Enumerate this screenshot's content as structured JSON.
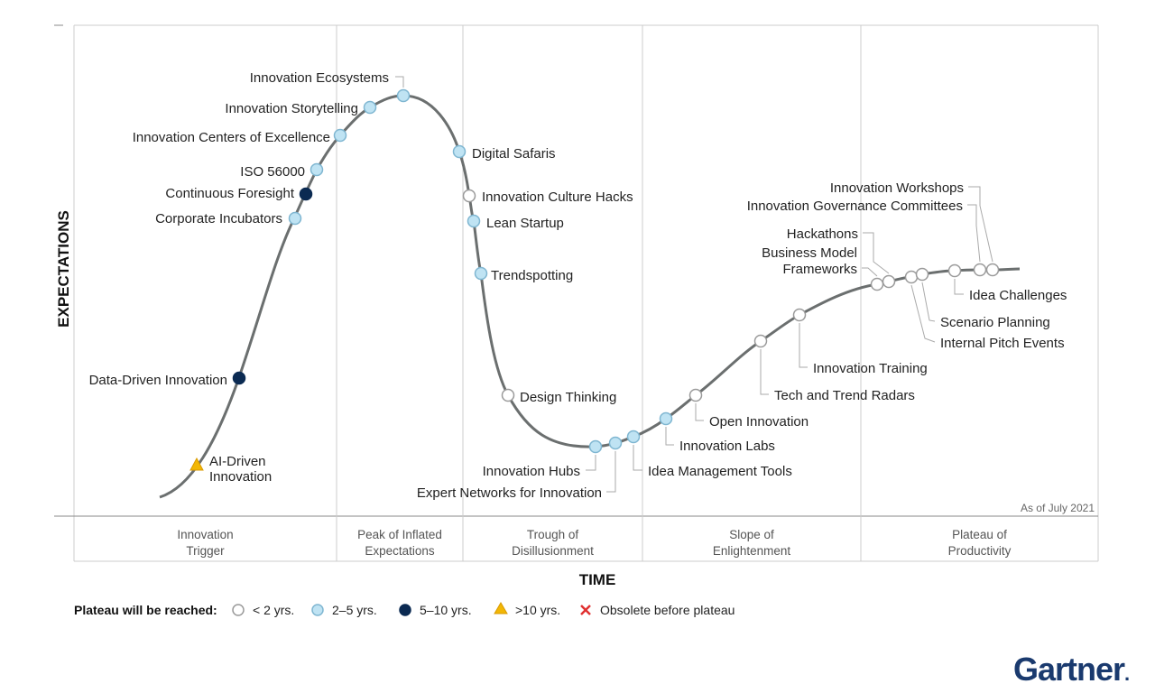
{
  "chart_data": {
    "type": "line",
    "title": "",
    "xlabel": "TIME",
    "ylabel": "EXPECTATIONS",
    "as_of": "As of July 2021",
    "phases": [
      [
        "Innovation",
        "Trigger"
      ],
      [
        "Peak of Inflated",
        "Expectations"
      ],
      [
        "Trough of",
        "Disillusionment"
      ],
      [
        "Slope of",
        "Enlightenment"
      ],
      [
        "Plateau of",
        "Productivity"
      ]
    ],
    "legend": {
      "title": "Plateau will be reached:",
      "items": [
        {
          "label": "< 2 yrs.",
          "fill": "#ffffff",
          "stroke": "#9a9a9a",
          "shape": "circle"
        },
        {
          "label": "2–5 yrs.",
          "fill": "#bfe3f3",
          "stroke": "#7fb6d1",
          "shape": "circle"
        },
        {
          "label": "5–10 yrs.",
          "fill": "#0b2a52",
          "stroke": "#0b2a52",
          "shape": "circle"
        },
        {
          "label": ">10 yrs.",
          "fill": "#f2b705",
          "stroke": "#d99a00",
          "shape": "triangle"
        },
        {
          "label": "Obsolete before plateau",
          "fill": "#ffffff",
          "stroke": "#e03030",
          "shape": "x"
        }
      ]
    },
    "technologies": [
      {
        "name": "AI-Driven",
        "name2": "Innovation",
        "cat": ">10",
        "phase": "Innovation Trigger"
      },
      {
        "name": "Data-Driven Innovation",
        "cat": "5-10",
        "phase": "Innovation Trigger"
      },
      {
        "name": "Corporate Incubators",
        "cat": "2-5",
        "phase": "Innovation Trigger"
      },
      {
        "name": "Continuous Foresight",
        "cat": "5-10",
        "phase": "Innovation Trigger"
      },
      {
        "name": "ISO 56000",
        "cat": "2-5",
        "phase": "Innovation Trigger"
      },
      {
        "name": "Innovation Centers of Excellence",
        "cat": "2-5",
        "phase": "Peak of Inflated Expectations"
      },
      {
        "name": "Innovation Storytelling",
        "cat": "2-5",
        "phase": "Peak of Inflated Expectations"
      },
      {
        "name": "Innovation Ecosystems",
        "cat": "2-5",
        "phase": "Peak of Inflated Expectations"
      },
      {
        "name": "Digital Safaris",
        "cat": "2-5",
        "phase": "Peak of Inflated Expectations"
      },
      {
        "name": "Innovation Culture Hacks",
        "cat": "<2",
        "phase": "Trough of Disillusionment"
      },
      {
        "name": "Lean Startup",
        "cat": "2-5",
        "phase": "Trough of Disillusionment"
      },
      {
        "name": "Trendspotting",
        "cat": "2-5",
        "phase": "Trough of Disillusionment"
      },
      {
        "name": "Design Thinking",
        "cat": "<2",
        "phase": "Trough of Disillusionment"
      },
      {
        "name": "Innovation Hubs",
        "cat": "2-5",
        "phase": "Trough of Disillusionment"
      },
      {
        "name": "Expert Networks for Innovation",
        "cat": "2-5",
        "phase": "Trough of Disillusionment"
      },
      {
        "name": "Idea Management Tools",
        "cat": "2-5",
        "phase": "Trough of Disillusionment"
      },
      {
        "name": "Innovation Labs",
        "cat": "2-5",
        "phase": "Slope of Enlightenment"
      },
      {
        "name": "Open Innovation",
        "cat": "<2",
        "phase": "Slope of Enlightenment"
      },
      {
        "name": "Tech and Trend Radars",
        "cat": "<2",
        "phase": "Slope of Enlightenment"
      },
      {
        "name": "Innovation Training",
        "cat": "<2",
        "phase": "Slope of Enlightenment"
      },
      {
        "name": "Business Model",
        "name2": "Frameworks",
        "cat": "<2",
        "phase": "Plateau of Productivity"
      },
      {
        "name": "Hackathons",
        "cat": "<2",
        "phase": "Plateau of Productivity"
      },
      {
        "name": "Internal Pitch Events",
        "cat": "<2",
        "phase": "Plateau of Productivity"
      },
      {
        "name": "Scenario Planning",
        "cat": "<2",
        "phase": "Plateau of Productivity"
      },
      {
        "name": "Idea Challenges",
        "cat": "<2",
        "phase": "Plateau of Productivity"
      },
      {
        "name": "Innovation Governance Committees",
        "cat": "<2",
        "phase": "Plateau of Productivity"
      },
      {
        "name": "Innovation Workshops",
        "cat": "<2",
        "phase": "Plateau of Productivity"
      }
    ]
  },
  "branding": {
    "logo": "Gartner",
    "logo_mark": "."
  },
  "colors": {
    "curve": "#6b6f6f",
    "frame": "#cccccc",
    "logo": "#1a3a6e"
  }
}
